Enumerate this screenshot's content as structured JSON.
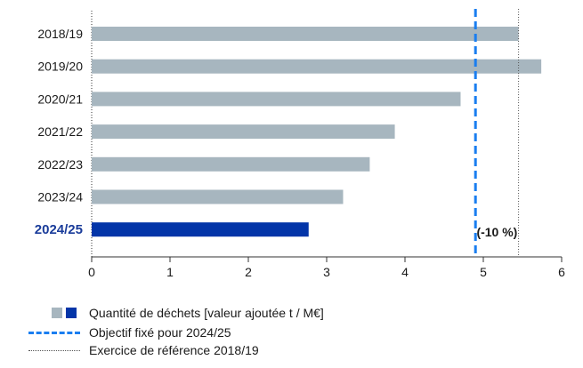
{
  "colors": {
    "bar": "#a7b6bf",
    "highlight": "#0335a8",
    "highlight_text": "#1a3c9a",
    "target": "#1a7ef0",
    "reference": "#555555",
    "axis": "#333333"
  },
  "chart_data": {
    "type": "bar",
    "orientation": "horizontal",
    "categories": [
      "2018/19",
      "2019/20",
      "2020/21",
      "2021/22",
      "2022/23",
      "2023/24",
      "2024/25"
    ],
    "values": [
      5.45,
      5.74,
      4.71,
      3.87,
      3.55,
      3.21,
      2.77
    ],
    "highlight_category": "2024/25",
    "xlim": [
      0,
      6
    ],
    "xticks": [
      "0",
      "1",
      "2",
      "3",
      "4",
      "5",
      "6"
    ],
    "target_value": 4.9,
    "reference_value": 5.45,
    "annotation": "(-10 %)",
    "grid": false
  },
  "legend": {
    "quantity": "Quantité de déchets [valeur ajoutée t / M€]",
    "target": "Objectif fixé pour 2024/25",
    "reference": "Exercice de référence 2018/19"
  }
}
